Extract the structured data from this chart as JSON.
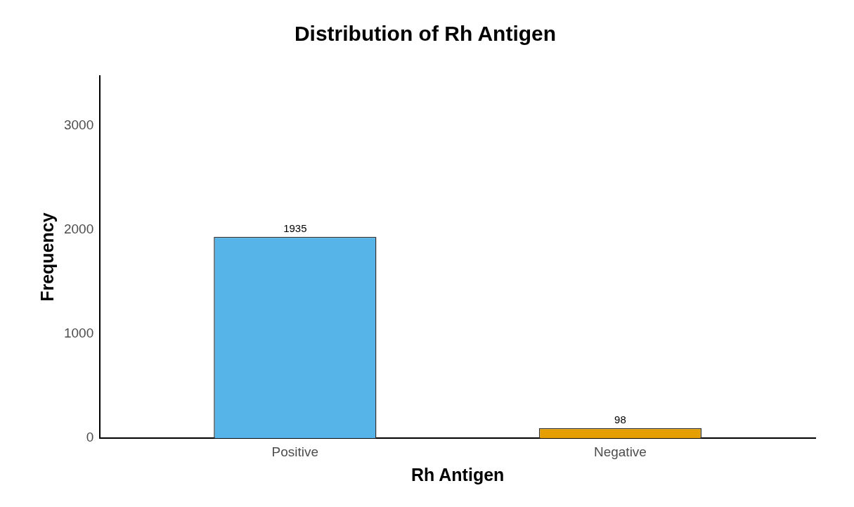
{
  "chart_data": {
    "type": "bar",
    "title": "Distribution of Rh Antigen",
    "xlabel": "Rh Antigen",
    "ylabel": "Frequency",
    "categories": [
      "Positive",
      "Negative"
    ],
    "values": [
      1935,
      98
    ],
    "colors": [
      "#56b4e9",
      "#e69f00"
    ],
    "ylim": [
      0,
      3480
    ],
    "yticks": [
      0,
      1000,
      2000,
      3000
    ],
    "data_labels": true,
    "grid": false,
    "legend": false
  }
}
